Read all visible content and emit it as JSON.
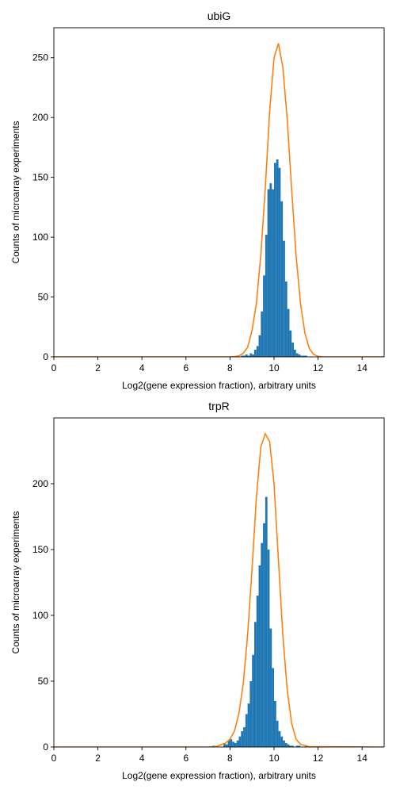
{
  "chart_data": [
    {
      "type": "bar",
      "title": "ubiG",
      "xlabel": "Log2(gene expression fraction), arbitrary units",
      "ylabel": "Counts of microarray experiments",
      "xlim": [
        0,
        15
      ],
      "ylim": [
        0,
        275
      ],
      "xticks": [
        0,
        2,
        4,
        6,
        8,
        10,
        12,
        14
      ],
      "yticks": [
        0,
        50,
        100,
        150,
        200,
        250
      ],
      "grid": false,
      "colors": {
        "histogram": "#1f77b4",
        "fit": "#ff7f0e"
      },
      "histogram": {
        "bin_start": 8.4,
        "bin_width": 0.1,
        "counts": [
          0,
          1,
          1,
          2,
          1,
          3,
          2,
          6,
          9,
          18,
          38,
          68,
          102,
          140,
          145,
          140,
          162,
          165,
          158,
          130,
          97,
          63,
          40,
          22,
          12,
          6,
          3,
          2,
          1,
          1,
          1
        ]
      },
      "fit_curve": {
        "x": [
          0,
          8.0,
          8.2,
          8.4,
          8.6,
          8.8,
          9.0,
          9.2,
          9.4,
          9.6,
          9.8,
          10.0,
          10.2,
          10.4,
          10.6,
          10.8,
          11.0,
          11.2,
          11.4,
          11.6,
          11.8,
          12.0,
          12.2,
          15
        ],
        "y": [
          0,
          0,
          0.2,
          0.8,
          3,
          8,
          22,
          45,
          85,
          140,
          205,
          250,
          262,
          242,
          198,
          140,
          85,
          45,
          20,
          7,
          2,
          0.5,
          0,
          0
        ]
      }
    },
    {
      "type": "bar",
      "title": "trpR",
      "xlabel": "Log2(gene expression fraction), arbitrary units",
      "ylabel": "Counts of microarray experiments",
      "xlim": [
        0,
        15
      ],
      "ylim": [
        0,
        250
      ],
      "xticks": [
        0,
        2,
        4,
        6,
        8,
        10,
        12,
        14
      ],
      "yticks": [
        0,
        50,
        100,
        150,
        200
      ],
      "grid": false,
      "colors": {
        "histogram": "#1f77b4",
        "fit": "#ff7f0e"
      },
      "histogram": {
        "bin_start": 7.2,
        "bin_width": 0.1,
        "counts": [
          1,
          0,
          0,
          0,
          0,
          3,
          2,
          5,
          6,
          4,
          3,
          5,
          8,
          12,
          15,
          25,
          33,
          50,
          70,
          95,
          115,
          138,
          155,
          170,
          190,
          150,
          90,
          60,
          35,
          20,
          12,
          8,
          5,
          3,
          2,
          1,
          1,
          0,
          1,
          1,
          0,
          0,
          1
        ]
      },
      "fit_curve": {
        "x": [
          0,
          7.0,
          7.4,
          7.8,
          8.0,
          8.2,
          8.4,
          8.6,
          8.8,
          9.0,
          9.2,
          9.4,
          9.6,
          9.8,
          10.0,
          10.2,
          10.4,
          10.6,
          10.8,
          11.0,
          11.2,
          11.6,
          15
        ],
        "y": [
          0,
          0,
          0.5,
          3,
          6,
          12,
          25,
          48,
          85,
          135,
          190,
          228,
          238,
          232,
          200,
          142,
          85,
          43,
          18,
          6,
          2,
          0.3,
          0
        ]
      }
    }
  ]
}
